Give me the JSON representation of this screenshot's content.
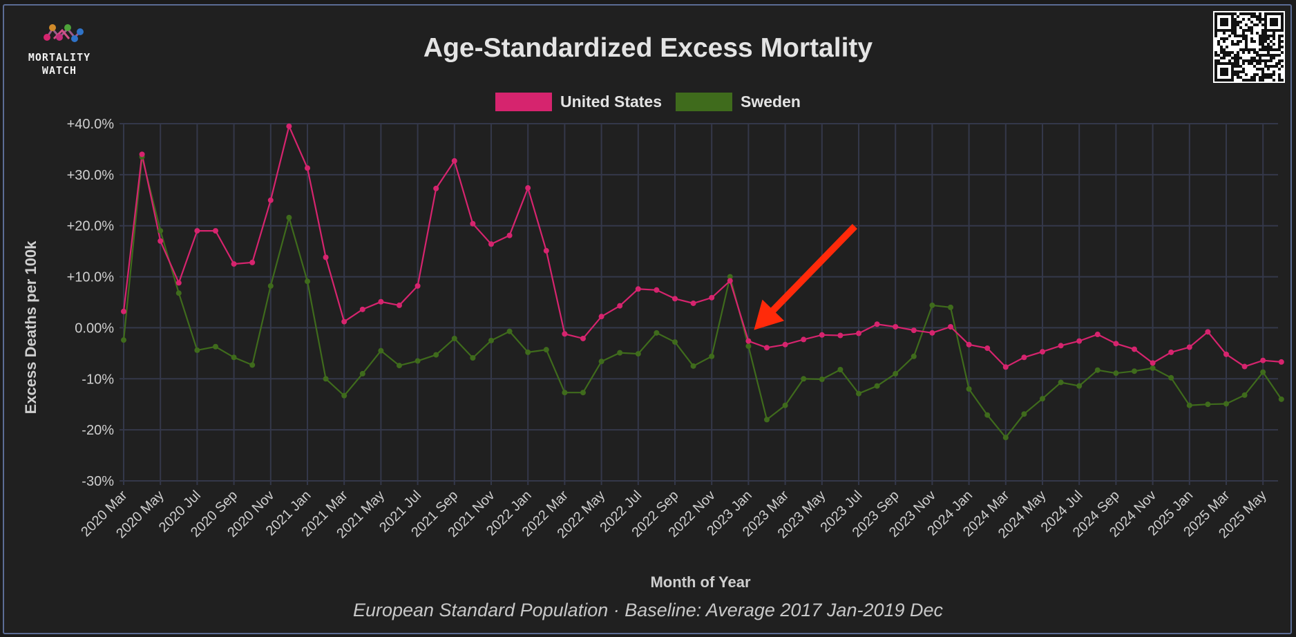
{
  "logo": {
    "text": "MORTALITY\nWATCH",
    "name": "mortality-watch-logo"
  },
  "chart_data": {
    "type": "line",
    "title": "Age-Standardized Excess Mortality",
    "subtitle": "European Standard Population · Baseline: Average 2017 Jan-2019 Dec",
    "xlabel": "Month of Year",
    "ylabel": "Excess Deaths per 100k",
    "ylim": [
      -30,
      40
    ],
    "yticks": [
      40,
      30,
      20,
      10,
      0,
      -10,
      -20,
      -30
    ],
    "ytick_labels": [
      "+40.0%",
      "+30.0%",
      "+20.0%",
      "+10.0%",
      "0.00%",
      "-10%",
      "-20%",
      "-30%"
    ],
    "grid": true,
    "legend_position": "top-center",
    "categories": [
      "2020 Mar",
      "2020 Apr",
      "2020 May",
      "2020 Jun",
      "2020 Jul",
      "2020 Aug",
      "2020 Sep",
      "2020 Oct",
      "2020 Nov",
      "2020 Dec",
      "2021 Jan",
      "2021 Feb",
      "2021 Mar",
      "2021 Apr",
      "2021 May",
      "2021 Jun",
      "2021 Jul",
      "2021 Aug",
      "2021 Sep",
      "2021 Oct",
      "2021 Nov",
      "2021 Dec",
      "2022 Jan",
      "2022 Feb",
      "2022 Mar",
      "2022 Apr",
      "2022 May",
      "2022 Jun",
      "2022 Jul",
      "2022 Aug",
      "2022 Sep",
      "2022 Oct",
      "2022 Nov",
      "2022 Dec",
      "2023 Jan",
      "2023 Feb",
      "2023 Mar",
      "2023 Apr",
      "2023 May",
      "2023 Jun",
      "2023 Jul",
      "2023 Aug",
      "2023 Sep",
      "2023 Oct",
      "2023 Nov",
      "2023 Dec",
      "2024 Jan",
      "2024 Feb",
      "2024 Mar",
      "2024 Apr",
      "2024 May",
      "2024 Jun",
      "2024 Jul",
      "2024 Aug",
      "2024 Sep",
      "2024 Oct",
      "2024 Nov",
      "2024 Dec",
      "2025 Jan",
      "2025 Feb",
      "2025 Mar",
      "2025 Apr",
      "2025 May",
      "2025 Jun"
    ],
    "xtick_labels": [
      "2020 Mar",
      "2020 May",
      "2020 Jul",
      "2020 Sep",
      "2020 Nov",
      "2021 Jan",
      "2021 Mar",
      "2021 May",
      "2021 Jul",
      "2021 Sep",
      "2021 Nov",
      "2022 Jan",
      "2022 Mar",
      "2022 May",
      "2022 Jul",
      "2022 Sep",
      "2022 Nov",
      "2023 Jan",
      "2023 Mar",
      "2023 May",
      "2023 Jul",
      "2023 Sep",
      "2023 Nov",
      "2024 Jan",
      "2024 Mar",
      "2024 May",
      "2024 Jul",
      "2024 Sep",
      "2024 Nov",
      "2025 Jan",
      "2025 Mar",
      "2025 May"
    ],
    "series": [
      {
        "name": "United States",
        "color": "#d6246e",
        "values": [
          3.2,
          34,
          17,
          8.8,
          19,
          19,
          12.5,
          12.8,
          25,
          39.5,
          31.3,
          13.8,
          1.2,
          3.6,
          5.1,
          4.4,
          8.2,
          27.3,
          32.7,
          20.4,
          16.4,
          18.1,
          27.4,
          15.1,
          -1.2,
          -2.1,
          2.2,
          4.3,
          7.6,
          7.4,
          5.7,
          4.8,
          5.9,
          9.2,
          -2.6,
          -3.9,
          -3.3,
          -2.3,
          -1.4,
          -1.5,
          -1.1,
          0.7,
          0.2,
          -0.5,
          -1.0,
          0.2,
          -3.3,
          -4.0,
          -7.7,
          -5.8,
          -4.7,
          -3.5,
          -2.6,
          -1.3,
          -3.1,
          -4.2,
          -6.9,
          -4.8,
          -3.8,
          -0.8,
          -5.2,
          -7.6,
          -6.4,
          -6.7
        ]
      },
      {
        "name": "Sweden",
        "color": "#3f6b1c",
        "values": [
          -2.4,
          33.5,
          19,
          6.8,
          -4.4,
          -3.7,
          -5.8,
          -7.3,
          8.2,
          21.6,
          9.1,
          -10,
          -13.3,
          -9,
          -4.5,
          -7.4,
          -6.5,
          -5.3,
          -2.1,
          -5.9,
          -2.5,
          -0.7,
          -4.8,
          -4.3,
          -12.7,
          -12.7,
          -6.6,
          -4.9,
          -5.1,
          -1,
          -2.8,
          -7.5,
          -5.6,
          10,
          -3.6,
          -18,
          -15.2,
          -10,
          -10.1,
          -8.2,
          -12.9,
          -11.4,
          -9,
          -5.6,
          4.4,
          4,
          -12,
          -17.1,
          -21.5,
          -16.9,
          -13.9,
          -10.7,
          -11.4,
          -8.3,
          -8.9,
          -8.5,
          -7.9,
          -9.8,
          -15.2,
          -15,
          -14.9,
          -13.2,
          -8.7,
          -14
        ]
      }
    ],
    "annotations": [
      {
        "type": "arrow",
        "color": "#ff2a0a",
        "target": "2023 Jan"
      }
    ]
  }
}
